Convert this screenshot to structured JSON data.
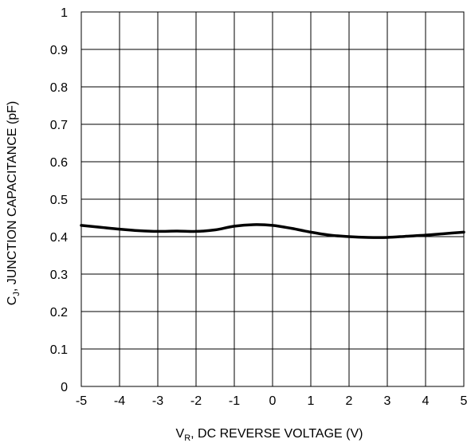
{
  "chart_data": {
    "type": "line",
    "title": "",
    "xlabel": {
      "main": "V",
      "sub": "R",
      "rest": ", DC REVERSE VOLTAGE (V)"
    },
    "ylabel": {
      "main": "C",
      "sub": "J",
      "rest": ", JUNCTION CAPACITANCE (pF)"
    },
    "xlim": [
      -5,
      5
    ],
    "ylim": [
      0,
      1
    ],
    "xticks": [
      "-5",
      "-4",
      "-3",
      "-2",
      "-1",
      "0",
      "1",
      "2",
      "3",
      "4",
      "5"
    ],
    "yticks": [
      "0",
      "0.1",
      "0.2",
      "0.3",
      "0.4",
      "0.5",
      "0.6",
      "0.7",
      "0.8",
      "0.9",
      "1"
    ],
    "grid": true,
    "series": [
      {
        "x": [
          -5,
          -4.5,
          -4,
          -3.5,
          -3,
          -2.5,
          -2,
          -1.5,
          -1,
          -0.5,
          0,
          0.5,
          1,
          1.5,
          2,
          2.5,
          3,
          3.5,
          4,
          4.5,
          5
        ],
        "y": [
          0.43,
          0.425,
          0.42,
          0.416,
          0.414,
          0.415,
          0.414,
          0.418,
          0.428,
          0.432,
          0.43,
          0.422,
          0.412,
          0.404,
          0.4,
          0.398,
          0.398,
          0.401,
          0.404,
          0.408,
          0.412
        ],
        "color": "#000000"
      }
    ]
  }
}
